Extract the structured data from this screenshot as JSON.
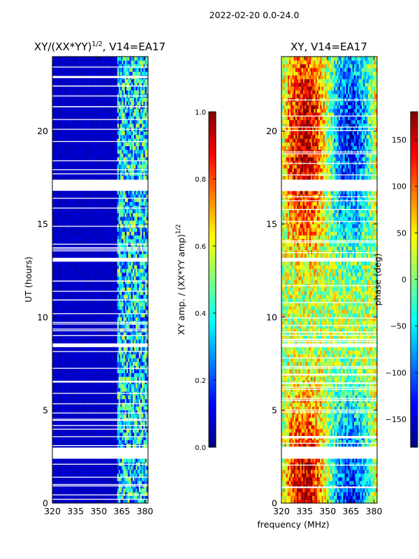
{
  "suptitle": "2022-02-20 0.0-24.0",
  "xlabel": "frequency (MHz)",
  "colors": {
    "jet": [
      "#00007f",
      "#0000ff",
      "#007fff",
      "#00ffff",
      "#7fff7f",
      "#ffff00",
      "#ff7f00",
      "#ff0000",
      "#7f0000"
    ],
    "gap": "#ffffff"
  },
  "chart_data": [
    {
      "type": "heatmap",
      "title_main": "XY/(XX*YY)",
      "title_sup": "1/2",
      "title_rest": ", V14=EA17",
      "xlabel": "",
      "ylabel": "UT (hours)",
      "xlim": [
        320,
        382
      ],
      "ylim": [
        0,
        24
      ],
      "xticks": [
        320,
        335,
        350,
        365,
        380
      ],
      "yticks": [
        0,
        5,
        10,
        15,
        20
      ],
      "colorbar": {
        "label_main": "XY amp. / (XX*YY amp)",
        "label_sup": "1/2",
        "range": [
          0.0,
          1.0
        ],
        "ticks": [
          "0.0",
          "0.2",
          "0.4",
          "0.6",
          "0.8",
          "1.0"
        ]
      },
      "data_gaps_hours": [
        [
          2.45,
          3.0
        ],
        [
          8.4,
          8.6
        ],
        [
          16.9,
          17.3
        ],
        [
          12.9,
          13.1
        ]
      ],
      "signal_band_mhz": [
        362,
        382
      ],
      "background_value": 0.05
    },
    {
      "type": "heatmap",
      "title_main": "XY, V14=EA17",
      "title_sup": "",
      "title_rest": "",
      "xlabel": "frequency (MHz)",
      "ylabel": "",
      "xlim": [
        320,
        382
      ],
      "ylim": [
        0,
        24
      ],
      "xticks": [
        320,
        335,
        350,
        365,
        380
      ],
      "yticks": [
        0,
        5,
        10,
        15,
        20
      ],
      "colorbar": {
        "label_main": "phase (deg)",
        "label_sup": "",
        "range": [
          -180,
          180
        ],
        "ticks": [
          "−150",
          "−100",
          "−50",
          "0",
          "50",
          "100",
          "150"
        ]
      },
      "data_gaps_hours": [
        [
          2.45,
          3.0
        ],
        [
          8.4,
          8.6
        ],
        [
          16.9,
          17.3
        ],
        [
          12.9,
          13.1
        ]
      ]
    }
  ]
}
